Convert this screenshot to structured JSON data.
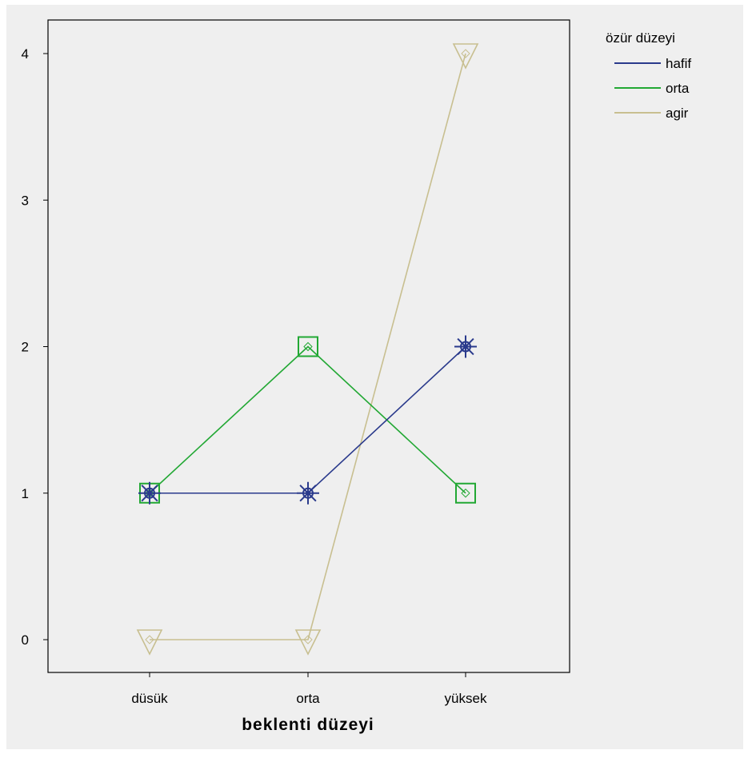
{
  "chart_data": {
    "type": "line",
    "xlabel": "beklenti düzeyi",
    "ylabel": "",
    "categories": [
      "düsük",
      "orta",
      "yüksek"
    ],
    "ylim": [
      0,
      4
    ],
    "yticks": [
      "0",
      "1",
      "2",
      "3",
      "4"
    ],
    "grid": false,
    "legend": {
      "title": "özür düzeyi",
      "placement": "right"
    },
    "series": [
      {
        "name": "hafif",
        "values": [
          1,
          1,
          2
        ],
        "color": "#2a3a8c",
        "marker": "star"
      },
      {
        "name": "orta",
        "values": [
          1,
          2,
          1
        ],
        "color": "#22a834",
        "marker": "square"
      },
      {
        "name": "agir",
        "values": [
          0,
          0,
          4
        ],
        "color": "#c8bf90",
        "marker": "triangle-down"
      }
    ]
  },
  "colors": {
    "background": "#efefef",
    "frame": "#ffffff",
    "axis": "#000000"
  }
}
